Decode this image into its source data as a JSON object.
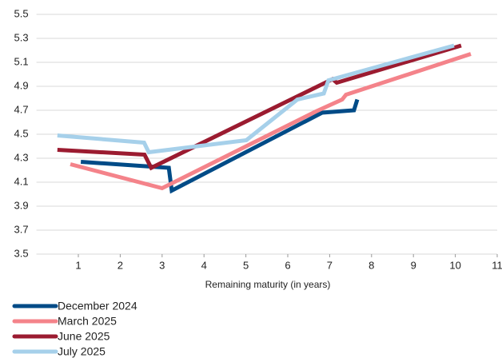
{
  "chart_data": {
    "type": "line",
    "x_label": "Remaining maturity (in years)",
    "xlim": [
      0,
      11
    ],
    "xticks": [
      1,
      2,
      3,
      4,
      5,
      6,
      7,
      8,
      9,
      10,
      11
    ],
    "ylim": [
      3.5,
      5.5
    ],
    "yticks": [
      3.5,
      3.7,
      3.9,
      4.1,
      4.3,
      4.5,
      4.7,
      4.9,
      5.1,
      5.3,
      5.5
    ],
    "grid": true,
    "legend": "bottom-left",
    "series": [
      {
        "name": "December 2024",
        "color": "#004b87",
        "x": [
          1.06,
          3.16,
          3.23,
          6.82,
          7.58,
          7.66
        ],
        "values": [
          4.27,
          4.22,
          4.03,
          4.68,
          4.7,
          4.79
        ]
      },
      {
        "name": "March 2025",
        "color": "#f4838a",
        "x": [
          0.81,
          3.0,
          6.67,
          7.3,
          7.39,
          10.37
        ],
        "values": [
          4.25,
          4.05,
          4.69,
          4.79,
          4.83,
          5.17
        ]
      },
      {
        "name": "June 2025",
        "color": "#9b1b30",
        "x": [
          0.5,
          2.58,
          2.74,
          7.07,
          7.17,
          10.14
        ],
        "values": [
          4.37,
          4.33,
          4.22,
          4.96,
          4.93,
          5.24
        ]
      },
      {
        "name": "July 2025",
        "color": "#a6d0ea",
        "x": [
          0.5,
          2.57,
          2.68,
          5.01,
          6.23,
          6.86,
          6.97,
          9.97
        ],
        "values": [
          4.49,
          4.43,
          4.35,
          4.45,
          4.79,
          4.84,
          4.95,
          5.24
        ]
      }
    ]
  }
}
